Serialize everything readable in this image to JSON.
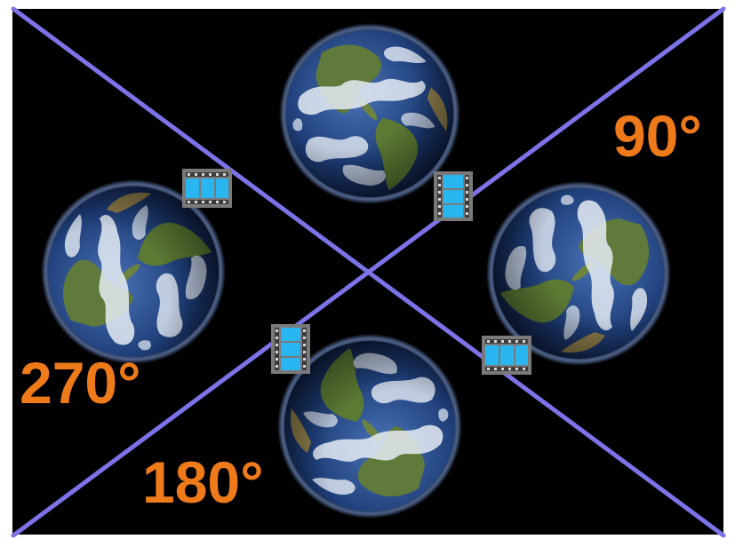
{
  "diagram": {
    "background_color": "#000000",
    "diagonal_color": "#7b74e8",
    "label_color": "#ee7a1a",
    "film_icon_color": "#29b6f0",
    "film_icon_frame_color": "#7a7a7a",
    "globe_ocean_color": "#1f3f7a",
    "globe_cloud_color": "#e6ecf5",
    "globe_land_color": "#5f7a3a",
    "labels": {
      "deg_90": "90°",
      "deg_180": "180°",
      "deg_270": "270°"
    },
    "globes": [
      {
        "id": "globe-top",
        "rotation_deg": 0
      },
      {
        "id": "globe-right",
        "rotation_deg": 90
      },
      {
        "id": "globe-bottom",
        "rotation_deg": 180
      },
      {
        "id": "globe-left",
        "rotation_deg": 270
      }
    ],
    "film_icons": [
      {
        "id": "film-icon-top-left",
        "orientation": "horizontal"
      },
      {
        "id": "film-icon-top-right",
        "orientation": "vertical"
      },
      {
        "id": "film-icon-bottom-left",
        "orientation": "vertical"
      },
      {
        "id": "film-icon-bottom-right",
        "orientation": "horizontal"
      }
    ]
  }
}
